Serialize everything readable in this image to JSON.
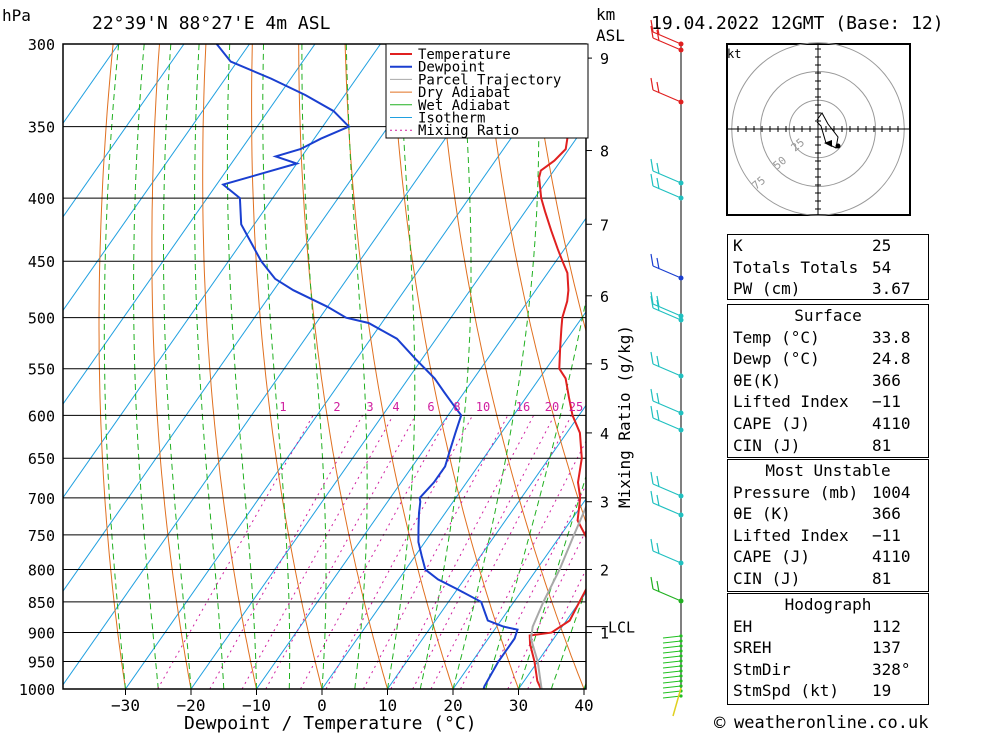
{
  "header": {
    "location": "22°39'N  88°27'E  4m  ASL",
    "pressure_unit": "hPa",
    "km_unit": "km",
    "asl_unit": "ASL",
    "datetime": "19.04.2022  12GMT  (Base: 12)"
  },
  "chart_data": {
    "type": "line",
    "title": "",
    "xlabel": "Dewpoint / Temperature (°C)",
    "ylabel": "hPa",
    "secondary_ylabel": "Mixing Ratio (g/kg)",
    "x_ticks": [
      -30,
      -20,
      -10,
      0,
      10,
      20,
      30,
      40
    ],
    "pressure_levels": [
      300,
      350,
      400,
      450,
      500,
      550,
      600,
      650,
      700,
      750,
      800,
      850,
      900,
      950,
      1000
    ],
    "km_ticks": [
      9,
      8,
      7,
      6,
      5,
      4,
      3,
      2,
      1
    ],
    "lcl_label": "LCL",
    "lcl_pressure": 890,
    "mixing_ratio_labels": [
      "1",
      "2",
      "3",
      "4",
      "6",
      "8",
      "10",
      "16",
      "20",
      "25"
    ],
    "legend": [
      "Temperature",
      "Dewpoint",
      "Parcel Trajectory",
      "Dry Adiabat",
      "Wet Adiabat",
      "Isotherm",
      "Mixing Ratio"
    ],
    "legend_position": "top-right",
    "colors": {
      "temperature": "#e02020",
      "dewpoint": "#1a3fd0",
      "parcel": "#a8a8a8",
      "dry_adiabat": "#e07020",
      "wet_adiabat": "#20b020",
      "isotherm": "#20a0e0",
      "mixing_ratio": "#d020a0"
    },
    "series": [
      {
        "name": "Temperature",
        "points": [
          [
            33.8,
            1004
          ],
          [
            32,
            985
          ],
          [
            29.5,
            950
          ],
          [
            27,
            920
          ],
          [
            26,
            905
          ],
          [
            29,
            900
          ],
          [
            30.5,
            880
          ],
          [
            30,
            850
          ],
          [
            29.5,
            820
          ],
          [
            28.5,
            800
          ],
          [
            25,
            760
          ],
          [
            21,
            730
          ],
          [
            19,
            700
          ],
          [
            17,
            680
          ],
          [
            15,
            650
          ],
          [
            12,
            620
          ],
          [
            9,
            600
          ],
          [
            6.5,
            580
          ],
          [
            4,
            560
          ],
          [
            2,
            550
          ],
          [
            0,
            530
          ],
          [
            -2,
            510
          ],
          [
            -3,
            500
          ],
          [
            -4,
            485
          ],
          [
            -5,
            475
          ],
          [
            -7,
            460
          ],
          [
            -9,
            450
          ],
          [
            -11,
            440
          ],
          [
            -14,
            425
          ],
          [
            -17,
            410
          ],
          [
            -19,
            400
          ],
          [
            -21.5,
            385
          ],
          [
            -22,
            380
          ],
          [
            -21,
            373
          ],
          [
            -20.5,
            365
          ],
          [
            -23,
            345
          ],
          [
            -25,
            330
          ],
          [
            -27,
            315
          ],
          [
            -29,
            300
          ]
        ]
      },
      {
        "name": "Dewpoint",
        "points": [
          [
            24.8,
            1004
          ],
          [
            24.5,
            995
          ],
          [
            24,
            950
          ],
          [
            24,
            910
          ],
          [
            23.5,
            895
          ],
          [
            21,
            890
          ],
          [
            18,
            880
          ],
          [
            17,
            870
          ],
          [
            16,
            860
          ],
          [
            15,
            850
          ],
          [
            10,
            830
          ],
          [
            6,
            815
          ],
          [
            4,
            805
          ],
          [
            3,
            800
          ],
          [
            1,
            780
          ],
          [
            -1,
            760
          ],
          [
            -2.5,
            740
          ],
          [
            -4,
            720
          ],
          [
            -5,
            705
          ],
          [
            -5.5,
            700
          ],
          [
            -5,
            680
          ],
          [
            -5,
            660
          ],
          [
            -6,
            640
          ],
          [
            -7,
            620
          ],
          [
            -8,
            600
          ],
          [
            -10,
            590
          ],
          [
            -13,
            575
          ],
          [
            -16,
            560
          ],
          [
            -21,
            540
          ],
          [
            -26,
            520
          ],
          [
            -32,
            505
          ],
          [
            -36,
            500
          ],
          [
            -40,
            490
          ],
          [
            -47,
            475
          ],
          [
            -51,
            465
          ],
          [
            -55,
            450
          ],
          [
            -62,
            420
          ],
          [
            -65,
            400
          ],
          [
            -69,
            390
          ],
          [
            -60,
            375
          ],
          [
            -64,
            370
          ],
          [
            -61,
            365
          ],
          [
            -59,
            358
          ],
          [
            -56,
            350
          ],
          [
            -60,
            340
          ],
          [
            -66,
            330
          ],
          [
            -73,
            320
          ],
          [
            -81,
            310
          ],
          [
            -85,
            300
          ]
        ]
      },
      {
        "name": "Parcel Trajectory",
        "points": [
          [
            33.8,
            1004
          ],
          [
            30,
            950
          ],
          [
            26.5,
            910
          ],
          [
            25.5,
            890
          ],
          [
            25,
            870
          ],
          [
            24.5,
            850
          ],
          [
            23.5,
            800
          ],
          [
            22,
            750
          ],
          [
            20.5,
            700
          ],
          [
            18.5,
            650
          ],
          [
            15.5,
            600
          ],
          [
            12,
            550
          ],
          [
            8,
            500
          ],
          [
            3,
            450
          ],
          [
            -3,
            400
          ],
          [
            -10,
            350
          ],
          [
            -14,
            330
          ],
          [
            -17,
            320
          ]
        ]
      }
    ],
    "skew": "skew-T, log-p",
    "grid": true
  },
  "hodograph": {
    "unit": "kt",
    "ring_labels": [
      "25",
      "50",
      "75"
    ]
  },
  "indices_table": {
    "rows": [
      {
        "label": "K",
        "value": "25"
      },
      {
        "label": "Totals Totals",
        "value": "54"
      },
      {
        "label": "PW (cm)",
        "value": "3.67"
      }
    ]
  },
  "surface_table": {
    "title": "Surface",
    "rows": [
      {
        "label": "Temp (°C)",
        "value": "33.8"
      },
      {
        "label": "Dewp (°C)",
        "value": "24.8"
      },
      {
        "label": "θE(K)",
        "value": "366"
      },
      {
        "label": "Lifted Index",
        "value": "−11"
      },
      {
        "label": "CAPE (J)",
        "value": "4110"
      },
      {
        "label": "CIN (J)",
        "value": "81"
      }
    ]
  },
  "unstable_table": {
    "title": "Most Unstable",
    "rows": [
      {
        "label": "Pressure (mb)",
        "value": "1004"
      },
      {
        "label": "θE (K)",
        "value": "366"
      },
      {
        "label": "Lifted Index",
        "value": "−11"
      },
      {
        "label": "CAPE (J)",
        "value": "4110"
      },
      {
        "label": "CIN (J)",
        "value": "81"
      }
    ]
  },
  "hodograph_table": {
    "title": "Hodograph",
    "rows": [
      {
        "label": "EH",
        "value": "112"
      },
      {
        "label": "SREH",
        "value": "137"
      },
      {
        "label": "StmDir",
        "value": "328°"
      },
      {
        "label": "StmSpd (kt)",
        "value": "19"
      }
    ]
  },
  "footer": {
    "copyright_symbol": "©",
    "site": "weatheronline.co.uk"
  }
}
